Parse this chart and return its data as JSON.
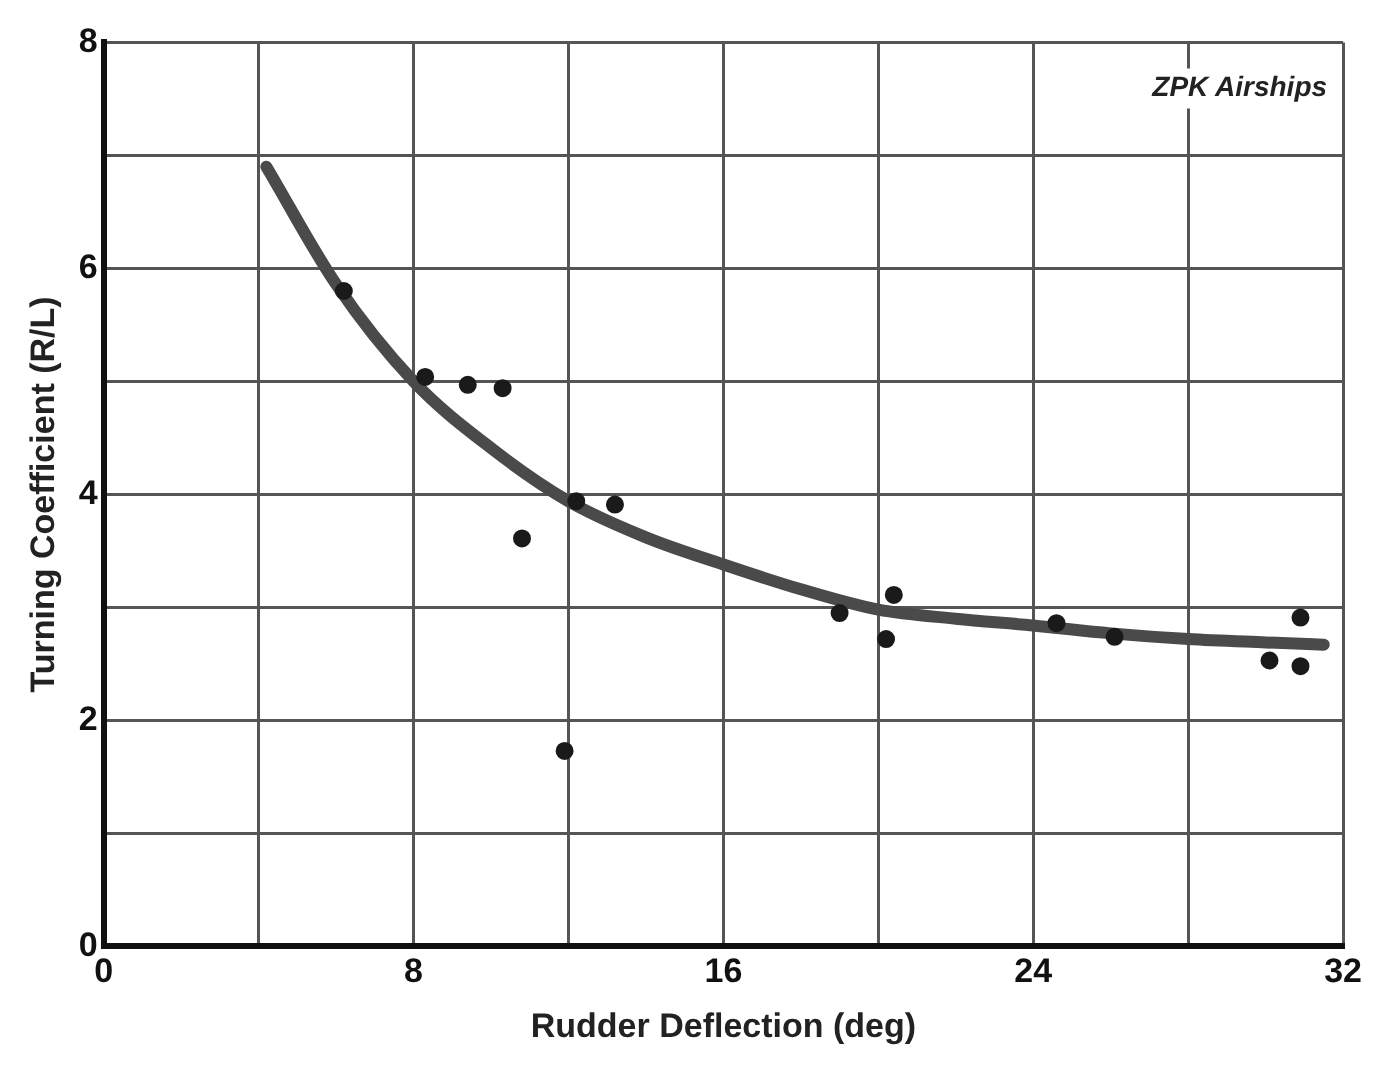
{
  "chart_data": {
    "type": "scatter",
    "xlabel": "Rudder Deflection (deg)",
    "ylabel": "Turning Coefficient (R/L)",
    "annotations": [
      "ZPK Airships"
    ],
    "xlim": [
      0,
      32
    ],
    "xticks": [
      0,
      {
        "value": 4,
        "label": null
      },
      8,
      {
        "value": 12,
        "label": null
      },
      16,
      {
        "value": 20,
        "label": null
      },
      24,
      {
        "value": 28,
        "label": null
      },
      32
    ],
    "ylim": [
      0,
      8
    ],
    "yticks": [
      0,
      {
        "value": 1,
        "label": null
      },
      2,
      {
        "value": 3,
        "label": null
      },
      4,
      {
        "value": 5,
        "label": null
      },
      6,
      {
        "value": 7,
        "label": null
      },
      8
    ],
    "grid": true,
    "legend": false,
    "series": [
      {
        "color": "#1a1a1a",
        "marker": "circle",
        "x": [
          6.2,
          8.3,
          9.4,
          10.3,
          10.8,
          11.9,
          12.2,
          13.2,
          19.0,
          20.2,
          20.4,
          24.6,
          26.1,
          30.1,
          30.9,
          30.9
        ],
        "values": [
          5.8,
          5.04,
          4.97,
          4.94,
          3.61,
          1.73,
          3.94,
          3.91,
          2.95,
          2.72,
          3.11,
          2.86,
          2.74,
          2.53,
          2.91,
          2.48
        ]
      },
      {
        "type": "line",
        "color": "#4a4a4a",
        "marker": "none",
        "line_style": "solid",
        "x": [
          4.2,
          6,
          8,
          10,
          12,
          14,
          16,
          18,
          20,
          22,
          24,
          26,
          28,
          30,
          31.5
        ],
        "values": [
          6.9,
          5.86,
          5.0,
          4.41,
          3.94,
          3.62,
          3.38,
          3.16,
          2.98,
          2.9,
          2.84,
          2.77,
          2.72,
          2.69,
          2.67
        ]
      }
    ]
  }
}
